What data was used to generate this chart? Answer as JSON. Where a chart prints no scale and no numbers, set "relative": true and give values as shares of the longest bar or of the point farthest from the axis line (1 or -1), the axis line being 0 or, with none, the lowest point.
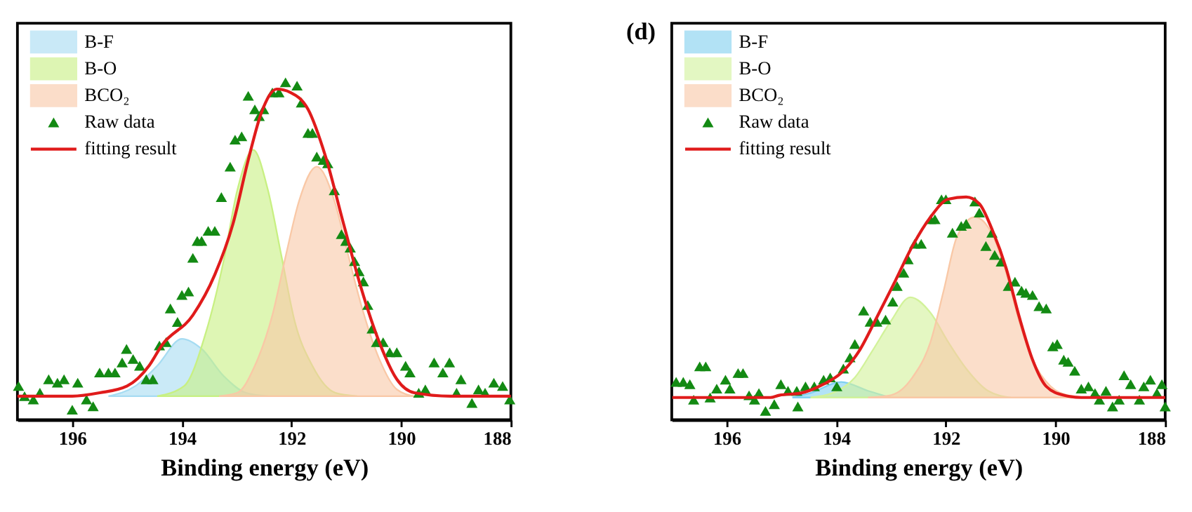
{
  "chart_data": [
    {
      "type": "area",
      "relative": true,
      "xlabel": "Binding energy (eV)",
      "xlim": [
        197,
        188
      ],
      "xticks": [
        196,
        194,
        192,
        190,
        188
      ],
      "grid": false,
      "legend": "top left",
      "series": [
        {
          "name": "B-F",
          "color": "#a6dcf2",
          "x": [
            195.34,
            194.85,
            194.45,
            194.0,
            193.64,
            193.24,
            192.83,
            192.43
          ],
          "values": [
            0.07,
            0.1,
            0.16,
            0.24,
            0.21,
            0.13,
            0.08,
            0.07
          ]
        },
        {
          "name": "B-O",
          "color": "#c8f082",
          "x": [
            194.45,
            193.96,
            193.56,
            193.24,
            192.99,
            192.7,
            192.43,
            192.19,
            191.94,
            191.62,
            191.2,
            190.8
          ],
          "values": [
            0.07,
            0.1,
            0.26,
            0.47,
            0.68,
            0.8,
            0.68,
            0.49,
            0.29,
            0.16,
            0.08,
            0.07
          ]
        },
        {
          "name": "BCO₂",
          "color": "#f9c8a6",
          "x": [
            193.32,
            192.99,
            192.67,
            192.35,
            192.1,
            191.86,
            191.54,
            191.22,
            190.97,
            190.73,
            190.4,
            190.08,
            189.76
          ],
          "values": [
            0.07,
            0.08,
            0.16,
            0.31,
            0.49,
            0.65,
            0.75,
            0.65,
            0.49,
            0.34,
            0.18,
            0.09,
            0.07
          ]
        },
        {
          "name": "Raw data",
          "type": "scatter",
          "marker": "triangle",
          "color": "#138a13",
          "x": [
            196.98,
            196.87,
            196.71,
            196.59,
            196.43,
            196.27,
            196.15,
            196.0,
            195.9,
            195.74,
            195.62,
            195.5,
            195.34,
            195.22,
            195.09,
            195.01,
            194.89,
            194.77,
            194.65,
            194.53,
            194.41,
            194.29,
            194.21,
            194.08,
            194.0,
            193.88,
            193.8,
            193.72,
            193.64,
            193.52,
            193.4,
            193.28,
            193.12,
            193.03,
            192.91,
            192.79,
            192.67,
            192.59,
            192.51,
            192.35,
            192.23,
            192.11,
            191.9,
            191.82,
            191.7,
            191.62,
            191.54,
            191.42,
            191.34,
            191.22,
            191.09,
            191.01,
            190.93,
            190.85,
            190.77,
            190.69,
            190.61,
            190.53,
            190.45,
            190.33,
            190.21,
            190.08,
            189.92,
            189.84,
            189.68,
            189.56,
            189.4,
            189.24,
            189.12,
            188.99,
            188.91,
            188.71,
            188.59,
            188.47,
            188.31,
            188.15,
            188.02
          ],
          "values": [
            0.1,
            0.07,
            0.06,
            0.08,
            0.12,
            0.11,
            0.12,
            0.03,
            0.11,
            0.06,
            0.04,
            0.14,
            0.14,
            0.14,
            0.17,
            0.21,
            0.18,
            0.16,
            0.12,
            0.12,
            0.22,
            0.23,
            0.33,
            0.29,
            0.37,
            0.38,
            0.48,
            0.53,
            0.53,
            0.56,
            0.56,
            0.66,
            0.75,
            0.83,
            0.84,
            0.96,
            0.92,
            0.9,
            0.92,
            0.97,
            0.97,
            1.0,
            0.99,
            0.94,
            0.85,
            0.85,
            0.78,
            0.77,
            0.76,
            0.68,
            0.55,
            0.53,
            0.51,
            0.47,
            0.44,
            0.41,
            0.34,
            0.27,
            0.23,
            0.23,
            0.2,
            0.2,
            0.16,
            0.14,
            0.08,
            0.09,
            0.17,
            0.14,
            0.17,
            0.08,
            0.12,
            0.05,
            0.09,
            0.08,
            0.11,
            0.1,
            0.06
          ]
        },
        {
          "name": "fitting result",
          "type": "line",
          "color": "#e01b1b",
          "x": [
            197.0,
            196.0,
            195.5,
            195.0,
            194.6,
            194.37,
            193.8,
            193.4,
            193.07,
            192.79,
            192.55,
            192.27,
            192.02,
            191.7,
            191.38,
            191.05,
            190.73,
            190.4,
            190.08,
            189.76,
            189.1,
            188.0
          ],
          "values": [
            0.07,
            0.07,
            0.08,
            0.1,
            0.16,
            0.22,
            0.31,
            0.43,
            0.58,
            0.77,
            0.91,
            0.98,
            0.97,
            0.92,
            0.78,
            0.58,
            0.39,
            0.23,
            0.12,
            0.08,
            0.07,
            0.07
          ]
        }
      ]
    },
    {
      "type": "area",
      "relative": true,
      "xlabel": "Binding energy (eV)",
      "xlim": [
        197,
        188
      ],
      "xticks": [
        196,
        194,
        192,
        190,
        188
      ],
      "grid": false,
      "legend": "top left",
      "annotations": [
        "(d)"
      ],
      "series": [
        {
          "name": "B-F",
          "color": "#7fd0f0",
          "x": [
            194.8,
            194.47,
            193.91,
            193.42,
            193.01
          ],
          "values": [
            0.1,
            0.12,
            0.17,
            0.13,
            0.1
          ]
        },
        {
          "name": "B-O",
          "color": "#d2f29a",
          "x": [
            194.47,
            194.07,
            193.66,
            193.34,
            193.01,
            192.65,
            192.28,
            191.96,
            191.63,
            191.23,
            190.82
          ],
          "values": [
            0.1,
            0.12,
            0.19,
            0.31,
            0.44,
            0.55,
            0.48,
            0.35,
            0.23,
            0.13,
            0.1
          ]
        },
        {
          "name": "BCO₂",
          "color": "#f9c8a6",
          "x": [
            193.42,
            193.01,
            192.61,
            192.28,
            192.04,
            191.8,
            191.47,
            191.15,
            190.9,
            190.66,
            190.42,
            190.09,
            189.77,
            189.44
          ],
          "values": [
            0.1,
            0.11,
            0.19,
            0.35,
            0.58,
            0.82,
            0.91,
            0.83,
            0.66,
            0.44,
            0.27,
            0.15,
            0.11,
            0.1
          ]
        },
        {
          "name": "Raw data",
          "type": "scatter",
          "marker": "triangle",
          "color": "#138a13",
          "x": [
            196.92,
            196.79,
            196.67,
            196.6,
            196.49,
            196.38,
            196.3,
            196.18,
            196.02,
            195.94,
            195.79,
            195.7,
            195.59,
            195.49,
            195.41,
            195.29,
            195.13,
            195.01,
            194.88,
            194.72,
            194.7,
            194.56,
            194.4,
            194.23,
            194.11,
            193.99,
            193.87,
            193.75,
            193.66,
            193.5,
            193.38,
            193.26,
            193.1,
            192.97,
            192.89,
            192.77,
            192.69,
            192.57,
            192.45,
            192.28,
            192.2,
            192.08,
            192.0,
            191.88,
            191.72,
            191.63,
            191.47,
            191.39,
            191.27,
            191.16,
            191.11,
            190.99,
            190.86,
            190.74,
            190.62,
            190.54,
            190.42,
            190.3,
            190.17,
            190.05,
            189.97,
            189.85,
            189.77,
            189.65,
            189.53,
            189.4,
            189.28,
            189.2,
            189.08,
            188.96,
            188.84,
            188.75,
            188.63,
            188.47,
            188.39,
            188.27,
            188.15,
            188.06,
            188.0
          ],
          "values": [
            0.17,
            0.17,
            0.16,
            0.09,
            0.24,
            0.24,
            0.1,
            0.14,
            0.18,
            0.14,
            0.21,
            0.21,
            0.11,
            0.09,
            0.12,
            0.04,
            0.07,
            0.16,
            0.13,
            0.13,
            0.06,
            0.15,
            0.15,
            0.18,
            0.19,
            0.15,
            0.23,
            0.28,
            0.34,
            0.49,
            0.44,
            0.44,
            0.45,
            0.53,
            0.6,
            0.66,
            0.72,
            0.79,
            0.79,
            0.9,
            0.9,
            0.99,
            0.99,
            0.84,
            0.87,
            0.88,
            0.98,
            0.93,
            0.78,
            0.84,
            0.74,
            0.71,
            0.6,
            0.62,
            0.58,
            0.57,
            0.56,
            0.51,
            0.5,
            0.33,
            0.34,
            0.27,
            0.26,
            0.22,
            0.14,
            0.15,
            0.12,
            0.09,
            0.13,
            0.06,
            0.09,
            0.2,
            0.16,
            0.09,
            0.15,
            0.18,
            0.12,
            0.16,
            0.06
          ]
        },
        {
          "name": "fitting result",
          "type": "line",
          "color": "#e01b1b",
          "x": [
            196.99,
            195.2,
            195.04,
            194.64,
            194.23,
            193.91,
            193.58,
            193.26,
            192.93,
            192.61,
            192.28,
            191.96,
            191.63,
            191.39,
            191.15,
            190.9,
            190.66,
            190.42,
            190.17,
            189.85,
            189.53,
            188.0
          ],
          "values": [
            0.1,
            0.1,
            0.11,
            0.12,
            0.16,
            0.21,
            0.31,
            0.46,
            0.62,
            0.78,
            0.91,
            0.99,
            1.0,
            0.97,
            0.85,
            0.68,
            0.46,
            0.27,
            0.15,
            0.11,
            0.1,
            0.1
          ]
        }
      ]
    }
  ]
}
